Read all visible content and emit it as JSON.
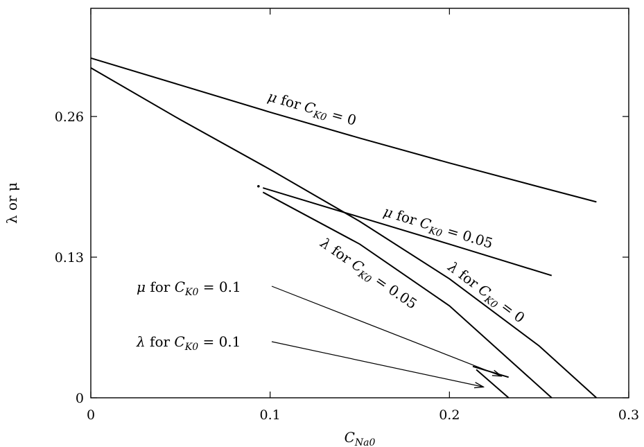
{
  "chart_data": {
    "type": "line",
    "title": "",
    "xlabel": {
      "main": "C",
      "sub": "Na0"
    },
    "ylabel": "λ or μ",
    "xlim": [
      0,
      0.3
    ],
    "ylim": [
      0,
      0.36
    ],
    "xticks": [
      0,
      0.1,
      0.2,
      0.3
    ],
    "xtick_labels": [
      "0",
      "0.1",
      "0.2",
      "0.3"
    ],
    "yticks": [
      0,
      0.13,
      0.26
    ],
    "ytick_labels": [
      "0",
      "0.13",
      "0.26"
    ],
    "grid": false,
    "series": [
      {
        "key": "mu0",
        "label": {
          "sym": "μ",
          "for": "for",
          "c": "C",
          "sub": "K0",
          "eq": "= 0"
        },
        "x": [
          0.0,
          0.05,
          0.1,
          0.15,
          0.2,
          0.25,
          0.282
        ],
        "y": [
          0.314,
          0.289,
          0.264,
          0.24,
          0.217,
          0.195,
          0.181
        ]
      },
      {
        "key": "lambda0",
        "label": {
          "sym": "λ",
          "for": "for",
          "c": "C",
          "sub": "K0",
          "eq": "= 0"
        },
        "x": [
          0.0,
          0.05,
          0.1,
          0.15,
          0.2,
          0.25,
          0.282
        ],
        "y": [
          0.305,
          0.257,
          0.211,
          0.163,
          0.11,
          0.048,
          0.0
        ]
      },
      {
        "key": "mu005",
        "label": {
          "sym": "μ",
          "for": "for",
          "c": "C",
          "sub": "K0",
          "eq": "= 0.05"
        },
        "x": [
          0.096,
          0.15,
          0.2,
          0.257
        ],
        "y": [
          0.194,
          0.167,
          0.142,
          0.113
        ]
      },
      {
        "key": "lambda005",
        "label": {
          "sym": "λ",
          "for": "for",
          "c": "C",
          "sub": "K0",
          "eq": "= 0.05"
        },
        "x": [
          0.096,
          0.15,
          0.2,
          0.257
        ],
        "y": [
          0.19,
          0.142,
          0.085,
          0.0
        ]
      },
      {
        "key": "mu01",
        "label": {
          "sym": "μ",
          "for": "for",
          "c": "C",
          "sub": "K0",
          "eq": "= 0.1"
        },
        "x": [
          0.213,
          0.233
        ],
        "y": [
          0.029,
          0.019
        ]
      },
      {
        "key": "lambda01",
        "label": {
          "sym": "λ",
          "for": "for",
          "c": "C",
          "sub": "K0",
          "eq": "= 0.1"
        },
        "x": [
          0.215,
          0.233
        ],
        "y": [
          0.026,
          0.0
        ]
      }
    ]
  }
}
